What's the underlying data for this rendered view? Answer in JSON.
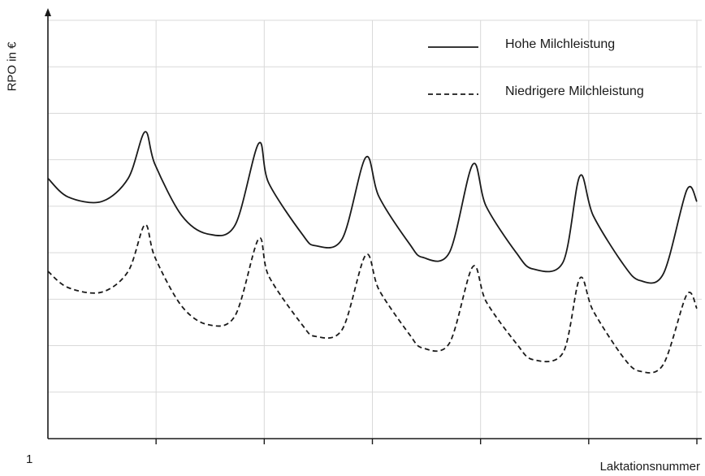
{
  "chart_data": {
    "type": "line",
    "title": "",
    "xlabel": "Laktationsnummer",
    "ylabel": "RPO in €",
    "x_tick_labels": [
      "1"
    ],
    "x_tick_count": 7,
    "ylim": [
      0,
      9
    ],
    "grid": true,
    "legend_position": "top-right",
    "series": [
      {
        "name": "Hohe Milchleistung",
        "style": "solid",
        "color": "#1a1a1a",
        "points": [
          [
            0.0,
            5.6
          ],
          [
            0.3,
            5.2
          ],
          [
            0.8,
            5.1
          ],
          [
            1.2,
            5.6
          ],
          [
            1.45,
            6.6
          ],
          [
            1.6,
            5.9
          ],
          [
            2.0,
            4.8
          ],
          [
            2.4,
            4.4
          ],
          [
            2.8,
            4.6
          ],
          [
            3.15,
            6.35
          ],
          [
            3.3,
            5.5
          ],
          [
            3.8,
            4.4
          ],
          [
            4.0,
            4.15
          ],
          [
            4.4,
            4.3
          ],
          [
            4.75,
            6.05
          ],
          [
            4.95,
            5.2
          ],
          [
            5.4,
            4.2
          ],
          [
            5.6,
            3.9
          ],
          [
            6.0,
            4.0
          ],
          [
            6.35,
            5.9
          ],
          [
            6.55,
            5.0
          ],
          [
            7.0,
            4.0
          ],
          [
            7.25,
            3.65
          ],
          [
            7.7,
            3.8
          ],
          [
            7.95,
            5.65
          ],
          [
            8.15,
            4.8
          ],
          [
            8.6,
            3.75
          ],
          [
            8.85,
            3.4
          ],
          [
            9.2,
            3.55
          ],
          [
            9.55,
            5.35
          ],
          [
            9.7,
            5.1
          ]
        ]
      },
      {
        "name": "Niedrigere Milchleistung",
        "style": "dashed",
        "color": "#1a1a1a",
        "points": [
          [
            0.0,
            3.6
          ],
          [
            0.3,
            3.25
          ],
          [
            0.8,
            3.15
          ],
          [
            1.2,
            3.6
          ],
          [
            1.45,
            4.6
          ],
          [
            1.6,
            3.9
          ],
          [
            2.0,
            2.85
          ],
          [
            2.4,
            2.45
          ],
          [
            2.8,
            2.65
          ],
          [
            3.15,
            4.3
          ],
          [
            3.3,
            3.5
          ],
          [
            3.8,
            2.45
          ],
          [
            4.0,
            2.2
          ],
          [
            4.4,
            2.35
          ],
          [
            4.75,
            3.95
          ],
          [
            4.95,
            3.2
          ],
          [
            5.4,
            2.25
          ],
          [
            5.6,
            1.95
          ],
          [
            6.0,
            2.05
          ],
          [
            6.35,
            3.7
          ],
          [
            6.55,
            2.95
          ],
          [
            7.0,
            2.05
          ],
          [
            7.25,
            1.7
          ],
          [
            7.7,
            1.85
          ],
          [
            7.95,
            3.45
          ],
          [
            8.15,
            2.75
          ],
          [
            8.6,
            1.75
          ],
          [
            8.85,
            1.45
          ],
          [
            9.2,
            1.6
          ],
          [
            9.55,
            3.1
          ],
          [
            9.7,
            2.8
          ]
        ]
      }
    ]
  }
}
